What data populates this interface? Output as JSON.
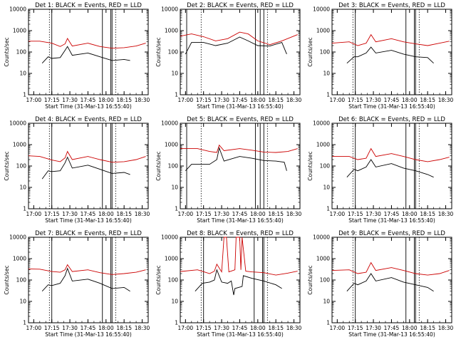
{
  "chart_data": [
    {
      "type": "line",
      "title": "Det 1: BLACK = Events, RED = LLD",
      "xlabel": "Start Time (31-Mar-13 16:55:40)",
      "ylabel": "Counts/sec",
      "xticks": [
        "17:00",
        "17:15",
        "17:30",
        "17:45",
        "18:00",
        "18:15",
        "18:30"
      ],
      "yticks": [
        "1",
        "10",
        "100",
        "1000",
        "10000"
      ],
      "ylim": [
        1,
        10000
      ],
      "yscale": "log",
      "xlim": [
        "16:55:40",
        "18:35:00"
      ],
      "series": [
        {
          "color": "#cc0000",
          "times": [
            "16:55:40",
            "17:05",
            "17:15",
            "17:22",
            "17:26",
            "17:28",
            "17:32",
            "17:45",
            "17:55",
            "18:05",
            "18:15",
            "18:25",
            "18:33"
          ],
          "values": [
            320,
            320,
            260,
            180,
            240,
            430,
            190,
            260,
            180,
            150,
            160,
            190,
            260
          ]
        },
        {
          "color": "#000000",
          "times": [
            "17:07",
            "17:12",
            "17:15",
            "17:22",
            "17:26",
            "17:28",
            "17:32",
            "17:45",
            "17:55",
            "18:05",
            "18:15",
            "18:20"
          ],
          "values": [
            30,
            60,
            50,
            55,
            120,
            180,
            70,
            90,
            60,
            40,
            45,
            40
          ]
        }
      ],
      "vlines_solid": [
        "17:15",
        "17:57",
        "18:04",
        "18:05"
      ],
      "vlines_dotted": [
        "17:13",
        "18:08"
      ]
    },
    {
      "type": "line",
      "title": "Det 2: BLACK = Events, RED = LLD",
      "xlabel": "Start Time (31-Mar-13 16:55:40)",
      "ylabel": "Counts/sec",
      "xticks": [
        "17:00",
        "17:15",
        "17:30",
        "17:45",
        "18:00",
        "18:15",
        "18:30"
      ],
      "yticks": [
        "1",
        "10",
        "100",
        "1000",
        "10000"
      ],
      "ylim": [
        1,
        10000
      ],
      "yscale": "log",
      "xlim": [
        "16:55:40",
        "18:35:00"
      ],
      "series": [
        {
          "color": "#cc0000",
          "times": [
            "16:55:40",
            "17:05",
            "17:15",
            "17:25",
            "17:35",
            "17:45",
            "17:52",
            "18:00",
            "18:10",
            "18:20",
            "18:33"
          ],
          "values": [
            550,
            700,
            520,
            330,
            420,
            850,
            700,
            330,
            220,
            330,
            650
          ]
        },
        {
          "color": "#000000",
          "times": [
            "17:00",
            "17:05",
            "17:15",
            "17:25",
            "17:35",
            "17:45",
            "17:52",
            "18:00",
            "18:10",
            "18:20",
            "18:24"
          ],
          "values": [
            80,
            280,
            280,
            200,
            260,
            500,
            330,
            200,
            190,
            280,
            80
          ]
        }
      ],
      "vlines_solid": [
        "17:01",
        "17:58",
        "18:02",
        "18:05"
      ],
      "vlines_dotted": [
        "17:13",
        "18:08"
      ]
    },
    {
      "type": "line",
      "title": "Det 3: BLACK = Events, RED = LLD",
      "xlabel": "Start Time (31-Mar-13 16:55:40)",
      "ylabel": "Counts/sec",
      "xticks": [
        "17:00",
        "17:15",
        "17:30",
        "17:45",
        "18:00",
        "18:15",
        "18:30"
      ],
      "yticks": [
        "1",
        "10",
        "100",
        "1000",
        "10000"
      ],
      "ylim": [
        1,
        10000
      ],
      "yscale": "log",
      "xlim": [
        "16:55:40",
        "18:35:00"
      ],
      "series": [
        {
          "color": "#cc0000",
          "times": [
            "16:55:40",
            "17:10",
            "17:17",
            "17:24",
            "17:28",
            "17:32",
            "17:45",
            "17:55",
            "18:05",
            "18:15",
            "18:25",
            "18:33"
          ],
          "values": [
            260,
            300,
            200,
            260,
            650,
            300,
            420,
            300,
            240,
            200,
            260,
            320
          ]
        },
        {
          "color": "#000000",
          "times": [
            "17:08",
            "17:14",
            "17:17",
            "17:24",
            "17:28",
            "17:32",
            "17:45",
            "17:55",
            "18:05",
            "18:15",
            "18:20"
          ],
          "values": [
            30,
            60,
            60,
            90,
            170,
            90,
            120,
            80,
            60,
            55,
            30
          ]
        }
      ],
      "vlines_solid": [
        "17:15",
        "17:57",
        "18:04",
        "18:05"
      ],
      "vlines_dotted": [
        "17:13",
        "18:08"
      ]
    },
    {
      "type": "line",
      "title": "Det 4: BLACK = Events, RED = LLD",
      "xlabel": "Start Time (31-Mar-13 16:55:40)",
      "ylabel": "Counts/sec",
      "xticks": [
        "17:00",
        "17:15",
        "17:30",
        "17:45",
        "18:00",
        "18:15",
        "18:30"
      ],
      "yticks": [
        "1",
        "10",
        "100",
        "1000",
        "10000"
      ],
      "ylim": [
        1,
        10000
      ],
      "yscale": "log",
      "xlim": [
        "16:55:40",
        "18:35:00"
      ],
      "series": [
        {
          "color": "#cc0000",
          "times": [
            "16:55:40",
            "17:05",
            "17:15",
            "17:22",
            "17:26",
            "17:28",
            "17:32",
            "17:45",
            "17:55",
            "18:05",
            "18:15",
            "18:25",
            "18:33"
          ],
          "values": [
            300,
            280,
            190,
            160,
            240,
            480,
            200,
            280,
            200,
            150,
            160,
            200,
            280
          ]
        },
        {
          "color": "#000000",
          "times": [
            "17:07",
            "17:12",
            "17:15",
            "17:22",
            "17:26",
            "17:28",
            "17:32",
            "17:45",
            "17:55",
            "18:05",
            "18:15",
            "18:20"
          ],
          "values": [
            25,
            60,
            55,
            60,
            140,
            260,
            80,
            110,
            70,
            45,
            50,
            40
          ]
        }
      ],
      "vlines_solid": [
        "17:15",
        "17:57",
        "18:04",
        "18:05"
      ],
      "vlines_dotted": [
        "17:13",
        "18:08"
      ]
    },
    {
      "type": "line",
      "title": "Det 5: BLACK = Events, RED = LLD",
      "xlabel": "Start Time (31-Mar-13 16:55:40)",
      "ylabel": "Counts/sec",
      "xticks": [
        "17:00",
        "17:15",
        "17:30",
        "17:45",
        "18:00",
        "18:15",
        "18:30"
      ],
      "yticks": [
        "1",
        "10",
        "100",
        "1000",
        "10000"
      ],
      "ylim": [
        1,
        10000
      ],
      "yscale": "log",
      "xlim": [
        "16:55:40",
        "18:35:00"
      ],
      "series": [
        {
          "color": "#cc0000",
          "times": [
            "16:55:40",
            "17:10",
            "17:20",
            "17:26",
            "17:28",
            "17:32",
            "17:45",
            "17:55",
            "18:05",
            "18:15",
            "18:25",
            "18:33"
          ],
          "values": [
            650,
            650,
            480,
            430,
            950,
            520,
            650,
            550,
            450,
            430,
            480,
            650
          ]
        },
        {
          "color": "#000000",
          "times": [
            "17:00",
            "17:05",
            "17:20",
            "17:26",
            "17:28",
            "17:32",
            "17:45",
            "17:55",
            "18:05",
            "18:15",
            "18:22",
            "18:24"
          ],
          "values": [
            60,
            120,
            120,
            200,
            700,
            170,
            280,
            230,
            180,
            170,
            150,
            60
          ]
        }
      ],
      "vlines_solid": [
        "17:01",
        "17:58",
        "18:02",
        "18:05"
      ],
      "vlines_dotted": [
        "17:13",
        "18:08"
      ]
    },
    {
      "type": "line",
      "title": "Det 6: BLACK = Events, RED = LLD",
      "xlabel": "Start Time (31-Mar-13 16:55:40)",
      "ylabel": "Counts/sec",
      "xticks": [
        "17:00",
        "17:15",
        "17:30",
        "17:45",
        "18:00",
        "18:15",
        "18:30"
      ],
      "yticks": [
        "1",
        "10",
        "100",
        "1000",
        "10000"
      ],
      "ylim": [
        1,
        10000
      ],
      "yscale": "log",
      "xlim": [
        "16:55:40",
        "18:35:00"
      ],
      "series": [
        {
          "color": "#cc0000",
          "times": [
            "16:55:40",
            "17:10",
            "17:17",
            "17:24",
            "17:28",
            "17:32",
            "17:45",
            "17:55",
            "18:05",
            "18:15",
            "18:25",
            "18:33"
          ],
          "values": [
            280,
            280,
            200,
            230,
            650,
            280,
            380,
            280,
            200,
            160,
            200,
            260
          ]
        },
        {
          "color": "#000000",
          "times": [
            "17:08",
            "17:14",
            "17:17",
            "17:24",
            "17:28",
            "17:32",
            "17:45",
            "17:55",
            "18:05",
            "18:15",
            "18:20"
          ],
          "values": [
            30,
            70,
            60,
            90,
            200,
            90,
            130,
            80,
            60,
            40,
            30
          ]
        }
      ],
      "vlines_solid": [
        "17:15",
        "17:57",
        "18:04",
        "18:05"
      ],
      "vlines_dotted": [
        "17:13",
        "18:08"
      ]
    },
    {
      "type": "line",
      "title": "Det 7: BLACK = Events, RED = LLD",
      "xlabel": "Start Time (31-Mar-13 16:55:40)",
      "ylabel": "Counts/sec",
      "xticks": [
        "17:00",
        "17:15",
        "17:30",
        "17:45",
        "18:00",
        "18:15",
        "18:30"
      ],
      "yticks": [
        "1",
        "10",
        "100",
        "1000",
        "10000"
      ],
      "ylim": [
        1,
        10000
      ],
      "yscale": "log",
      "xlim": [
        "16:55:40",
        "18:35:00"
      ],
      "series": [
        {
          "color": "#cc0000",
          "times": [
            "16:55:40",
            "17:05",
            "17:15",
            "17:22",
            "17:26",
            "17:28",
            "17:32",
            "17:45",
            "17:55",
            "18:05",
            "18:15",
            "18:25",
            "18:33"
          ],
          "values": [
            330,
            320,
            250,
            230,
            300,
            520,
            250,
            300,
            220,
            180,
            200,
            230,
            300
          ]
        },
        {
          "color": "#000000",
          "times": [
            "17:07",
            "17:12",
            "17:15",
            "17:22",
            "17:26",
            "17:28",
            "17:32",
            "17:45",
            "17:55",
            "18:05",
            "18:15",
            "18:20"
          ],
          "values": [
            30,
            60,
            55,
            70,
            160,
            350,
            90,
            110,
            70,
            40,
            45,
            30
          ]
        }
      ],
      "vlines_solid": [
        "17:15",
        "17:57",
        "18:04",
        "18:05"
      ],
      "vlines_dotted": [
        "17:13",
        "18:08"
      ]
    },
    {
      "type": "line",
      "title": "Det 8: BLACK = Events, RED = LLD",
      "xlabel": "Start Time (31-Mar-13 16:55:40)",
      "ylabel": "Counts/sec",
      "xticks": [
        "17:00",
        "17:15",
        "17:30",
        "17:45",
        "18:00",
        "18:15",
        "18:30"
      ],
      "yticks": [
        "1",
        "10",
        "100",
        "1000",
        "10000"
      ],
      "ylim": [
        1,
        10000
      ],
      "yscale": "log",
      "xlim": [
        "16:55:40",
        "18:35:00"
      ],
      "series": [
        {
          "color": "#cc0000",
          "times": [
            "16:55:40",
            "17:10",
            "17:20",
            "17:24",
            "17:26",
            "17:30",
            "17:32",
            "17:34",
            "17:36",
            "17:41",
            "17:42",
            "17:45",
            "17:46",
            "17:47",
            "17:50",
            "17:55",
            "18:05",
            "18:15",
            "18:25",
            "18:33"
          ],
          "values": [
            250,
            300,
            200,
            260,
            550,
            240,
            10000,
            10000,
            240,
            300,
            10000,
            10000,
            300,
            10000,
            260,
            240,
            220,
            170,
            210,
            260
          ]
        },
        {
          "color": "#000000",
          "times": [
            "17:08",
            "17:14",
            "17:20",
            "17:24",
            "17:26",
            "17:30",
            "17:35",
            "17:38",
            "17:40",
            "17:41",
            "17:47",
            "17:48",
            "17:55",
            "18:05",
            "18:15",
            "18:20"
          ],
          "values": [
            30,
            70,
            80,
            100,
            300,
            80,
            70,
            90,
            20,
            40,
            50,
            160,
            120,
            90,
            60,
            40
          ]
        }
      ],
      "vlines_solid": [
        "17:15",
        "17:57",
        "18:04",
        "18:05"
      ],
      "vlines_dotted": [
        "17:13",
        "18:08"
      ]
    },
    {
      "type": "line",
      "title": "Det 9: BLACK = Events, RED = LLD",
      "xlabel": "Start Time (31-Mar-13 16:55:40)",
      "ylabel": "Counts/sec",
      "xticks": [
        "17:00",
        "17:15",
        "17:30",
        "17:45",
        "18:00",
        "18:15",
        "18:30"
      ],
      "yticks": [
        "1",
        "10",
        "100",
        "1000",
        "10000"
      ],
      "ylim": [
        1,
        10000
      ],
      "yscale": "log",
      "xlim": [
        "16:55:40",
        "18:35:00"
      ],
      "series": [
        {
          "color": "#cc0000",
          "times": [
            "16:55:40",
            "17:10",
            "17:17",
            "17:24",
            "17:28",
            "17:32",
            "17:45",
            "17:55",
            "18:05",
            "18:15",
            "18:25",
            "18:33"
          ],
          "values": [
            280,
            300,
            200,
            230,
            650,
            280,
            380,
            280,
            200,
            170,
            200,
            280
          ]
        },
        {
          "color": "#000000",
          "times": [
            "17:08",
            "17:14",
            "17:17",
            "17:24",
            "17:28",
            "17:32",
            "17:45",
            "17:55",
            "18:05",
            "18:15",
            "18:20"
          ],
          "values": [
            30,
            70,
            60,
            90,
            200,
            90,
            130,
            80,
            60,
            45,
            30
          ]
        }
      ],
      "vlines_solid": [
        "17:15",
        "17:57",
        "18:04",
        "18:05"
      ],
      "vlines_dotted": [
        "17:13",
        "18:08"
      ]
    }
  ]
}
